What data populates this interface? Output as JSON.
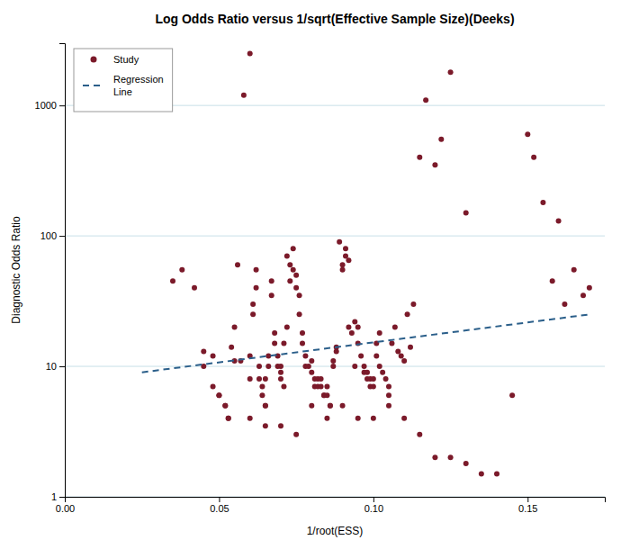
{
  "chart_data": {
    "type": "scatter",
    "title": "Log Odds Ratio versus 1/sqrt(Effective Sample Size)(Deeks)",
    "x_label": "1/root(ESS)",
    "y_label": "Diagnostic Odds Ratio",
    "xlim": [
      0.0,
      0.175
    ],
    "ylim": [
      1,
      3000
    ],
    "log": "y",
    "xticks": [
      {
        "value": 0.0,
        "label": "0.00"
      },
      {
        "value": 0.05,
        "label": "0.05"
      },
      {
        "value": 0.1,
        "label": "0.10"
      },
      {
        "value": 0.15,
        "label": "0.15"
      }
    ],
    "yticks": [
      1,
      10,
      100,
      1000
    ],
    "grid": true,
    "legend": "upper left",
    "series": [
      {
        "name": "Study",
        "type": "scatter",
        "marker": "circle",
        "color": "#7B1A2A",
        "x": [
          0.035,
          0.038,
          0.042,
          0.045,
          0.045,
          0.048,
          0.048,
          0.05,
          0.05,
          0.052,
          0.052,
          0.053,
          0.053,
          0.054,
          0.055,
          0.055,
          0.056,
          0.057,
          0.058,
          0.06,
          0.06,
          0.06,
          0.061,
          0.061,
          0.062,
          0.062,
          0.063,
          0.063,
          0.064,
          0.064,
          0.065,
          0.065,
          0.065,
          0.066,
          0.066,
          0.067,
          0.067,
          0.068,
          0.068,
          0.069,
          0.069,
          0.07,
          0.07,
          0.07,
          0.071,
          0.071,
          0.072,
          0.072,
          0.073,
          0.073,
          0.074,
          0.074,
          0.075,
          0.075,
          0.076,
          0.076,
          0.077,
          0.077,
          0.078,
          0.078,
          0.079,
          0.08,
          0.08,
          0.081,
          0.081,
          0.082,
          0.082,
          0.083,
          0.083,
          0.084,
          0.084,
          0.085,
          0.085,
          0.086,
          0.086,
          0.087,
          0.087,
          0.088,
          0.088,
          0.089,
          0.09,
          0.09,
          0.091,
          0.091,
          0.092,
          0.092,
          0.093,
          0.094,
          0.094,
          0.095,
          0.095,
          0.096,
          0.097,
          0.097,
          0.098,
          0.098,
          0.099,
          0.099,
          0.1,
          0.1,
          0.101,
          0.101,
          0.102,
          0.102,
          0.103,
          0.104,
          0.105,
          0.105,
          0.106,
          0.107,
          0.108,
          0.109,
          0.11,
          0.111,
          0.112,
          0.113,
          0.115,
          0.117,
          0.12,
          0.122,
          0.125,
          0.13,
          0.145,
          0.15,
          0.152,
          0.155,
          0.158,
          0.16,
          0.162,
          0.165,
          0.168,
          0.17,
          0.06,
          0.065,
          0.07,
          0.075,
          0.08,
          0.085,
          0.09,
          0.095,
          0.1,
          0.105,
          0.11,
          0.115,
          0.12,
          0.125,
          0.13,
          0.135,
          0.14
        ],
        "values": [
          45,
          55,
          40,
          10,
          13,
          12,
          7,
          6,
          6,
          5,
          5,
          4,
          4,
          14,
          11,
          20,
          60,
          11,
          1200,
          2500,
          12,
          8,
          30,
          25,
          40,
          55,
          10,
          8,
          7,
          6,
          5,
          5,
          8,
          10,
          12,
          45,
          35,
          18,
          15,
          12,
          10,
          10,
          9,
          8,
          7,
          15,
          20,
          70,
          60,
          45,
          55,
          80,
          50,
          40,
          35,
          25,
          18,
          15,
          12,
          10,
          10,
          11,
          9,
          8,
          7,
          7,
          8,
          8,
          7,
          6,
          6,
          7,
          6,
          5,
          5,
          11,
          10,
          14,
          13,
          90,
          60,
          55,
          70,
          80,
          65,
          20,
          18,
          22,
          10,
          15,
          20,
          12,
          10,
          9,
          9,
          8,
          8,
          7,
          7,
          8,
          12,
          15,
          18,
          10,
          9,
          8,
          7,
          6,
          15,
          20,
          13,
          12,
          11,
          25,
          14,
          30,
          400,
          1100,
          350,
          550,
          1800,
          150,
          6,
          600,
          400,
          180,
          45,
          130,
          30,
          55,
          35,
          40,
          4,
          3.5,
          3.5,
          3,
          5,
          4,
          5,
          4,
          4,
          5,
          4,
          3,
          2,
          2,
          1.8,
          1.5,
          1.5
        ]
      },
      {
        "name": "Regression\nLine",
        "type": "line",
        "line_style": "dashed",
        "color": "#2B5F8A",
        "x": [
          0.025,
          0.17
        ],
        "values": [
          9.0,
          25.0
        ]
      }
    ]
  }
}
